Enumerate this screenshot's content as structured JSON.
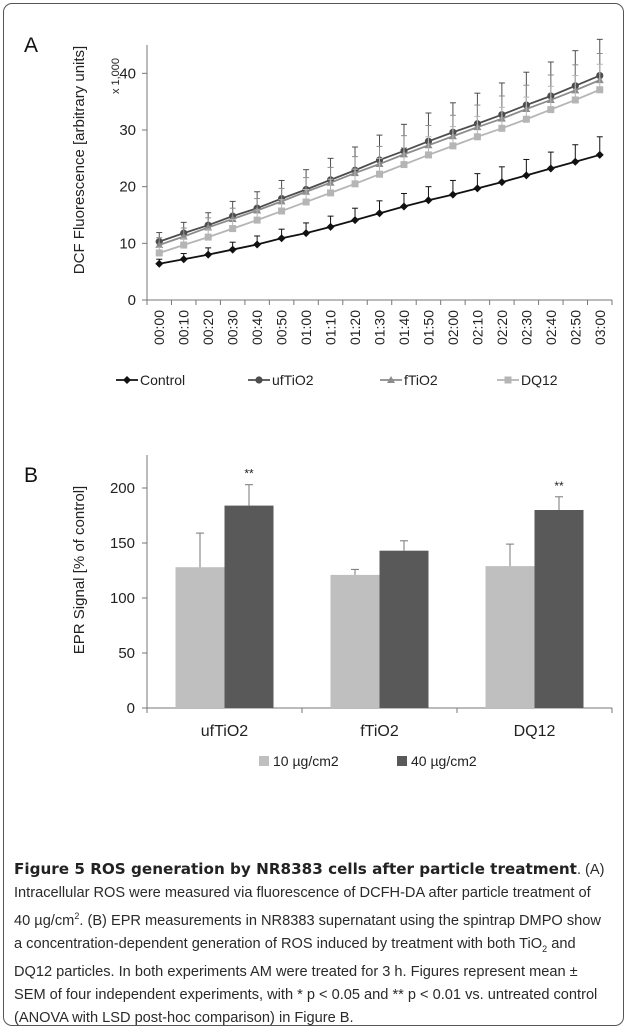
{
  "chart_data": [
    {
      "panel_label": "A",
      "type": "line",
      "ylabel": "DCF Fluorescence [arbitrary units]",
      "y_multiplier": "x 1,000",
      "ylim": [
        0,
        45
      ],
      "yticks": [
        0,
        10,
        20,
        30,
        40
      ],
      "x": [
        "00:00",
        "00:10",
        "00:20",
        "00:30",
        "00:40",
        "00:50",
        "01:00",
        "01:10",
        "01:20",
        "01:30",
        "01:40",
        "01:50",
        "02:00",
        "02:10",
        "02:20",
        "02:30",
        "02:40",
        "02:50",
        "03:00"
      ],
      "grid": false,
      "legend_position": "bottom",
      "series": [
        {
          "name": "Control",
          "color": "#111111",
          "marker": "diamond",
          "values": [
            6.4,
            7.2,
            8.0,
            8.9,
            9.8,
            10.9,
            11.8,
            12.9,
            14.1,
            15.3,
            16.5,
            17.6,
            18.6,
            19.7,
            20.8,
            22.0,
            23.2,
            24.4,
            25.6
          ],
          "err": [
            0.8,
            1.0,
            1.2,
            1.3,
            1.5,
            1.6,
            1.8,
            1.9,
            2.1,
            2.2,
            2.3,
            2.4,
            2.5,
            2.6,
            2.7,
            2.8,
            2.9,
            3.0,
            3.2
          ]
        },
        {
          "name": "ufTiO2",
          "color": "#4d4d4d",
          "marker": "circle",
          "values": [
            10.3,
            11.8,
            13.2,
            14.8,
            16.2,
            17.9,
            19.5,
            21.2,
            22.9,
            24.7,
            26.3,
            28.0,
            29.6,
            31.1,
            32.7,
            34.4,
            36.0,
            37.8,
            39.6
          ],
          "err": [
            1.6,
            1.9,
            2.2,
            2.6,
            2.9,
            3.2,
            3.5,
            3.8,
            4.1,
            4.4,
            4.7,
            5.0,
            5.2,
            5.4,
            5.6,
            5.8,
            6.0,
            6.2,
            6.4
          ]
        },
        {
          "name": "fTiO2",
          "color": "#8c8c8c",
          "marker": "triangle",
          "values": [
            9.7,
            11.2,
            12.8,
            14.3,
            15.8,
            17.4,
            19.1,
            20.7,
            22.4,
            24.0,
            25.7,
            27.3,
            28.9,
            30.5,
            32.0,
            33.7,
            35.3,
            37.0,
            38.8
          ],
          "err": [
            1.3,
            1.5,
            1.7,
            1.9,
            2.1,
            2.3,
            2.5,
            2.7,
            2.9,
            3.1,
            3.3,
            3.5,
            3.7,
            3.9,
            4.0,
            4.2,
            4.4,
            4.5,
            4.7
          ]
        },
        {
          "name": "DQ12",
          "color": "#b5b5b5",
          "marker": "square",
          "values": [
            8.3,
            9.7,
            11.1,
            12.6,
            14.1,
            15.7,
            17.3,
            18.9,
            20.5,
            22.2,
            23.9,
            25.6,
            27.2,
            28.8,
            30.3,
            31.9,
            33.6,
            35.3,
            37.1
          ],
          "err": [
            1.0,
            1.2,
            1.4,
            1.6,
            1.8,
            2.0,
            2.2,
            2.4,
            2.6,
            2.8,
            3.0,
            3.2,
            3.4,
            3.6,
            3.7,
            3.9,
            4.1,
            4.3,
            4.5
          ]
        }
      ]
    },
    {
      "panel_label": "B",
      "type": "bar",
      "ylabel": "EPR Signal [% of control]",
      "ylim": [
        0,
        230
      ],
      "yticks": [
        0,
        50,
        100,
        150,
        200
      ],
      "categories": [
        "ufTiO2",
        "fTiO2",
        "DQ12"
      ],
      "grid": false,
      "legend_position": "bottom",
      "series": [
        {
          "name": "10 µg/cm2",
          "color": "#bfbfbf",
          "values": [
            128,
            121,
            129
          ],
          "err": [
            31,
            5,
            20
          ]
        },
        {
          "name": "40 µg/cm2",
          "color": "#595959",
          "values": [
            184,
            143,
            180
          ],
          "err": [
            19,
            9,
            12
          ]
        }
      ],
      "annotations": [
        {
          "category": "ufTiO2",
          "series": "40 µg/cm2",
          "text": "**"
        },
        {
          "category": "DQ12",
          "series": "40 µg/cm2",
          "text": "**"
        }
      ]
    }
  ],
  "caption": {
    "lead": "Figure 5 ROS generation by NR8383 cells after particle treatment",
    "body_1": ". (A) Intracellular ROS were measured via fluorescence of DCFH-DA after particle treatment of 40 µg/cm",
    "sup_1": "2",
    "body_2": ". (B) EPR measurements in NR8383 supernatant using the spintrap DMPO show a concentration-dependent generation of ROS induced by treatment with both TiO",
    "sub_1": "2",
    "body_3": " and DQ12 particles. In both experiments AM were treated for 3 h. Figures represent mean ± SEM of four independent experiments, with * p < 0.05 and ** p < 0.01 vs. untreated control (ANOVA with LSD post-hoc comparison) in Figure B."
  }
}
